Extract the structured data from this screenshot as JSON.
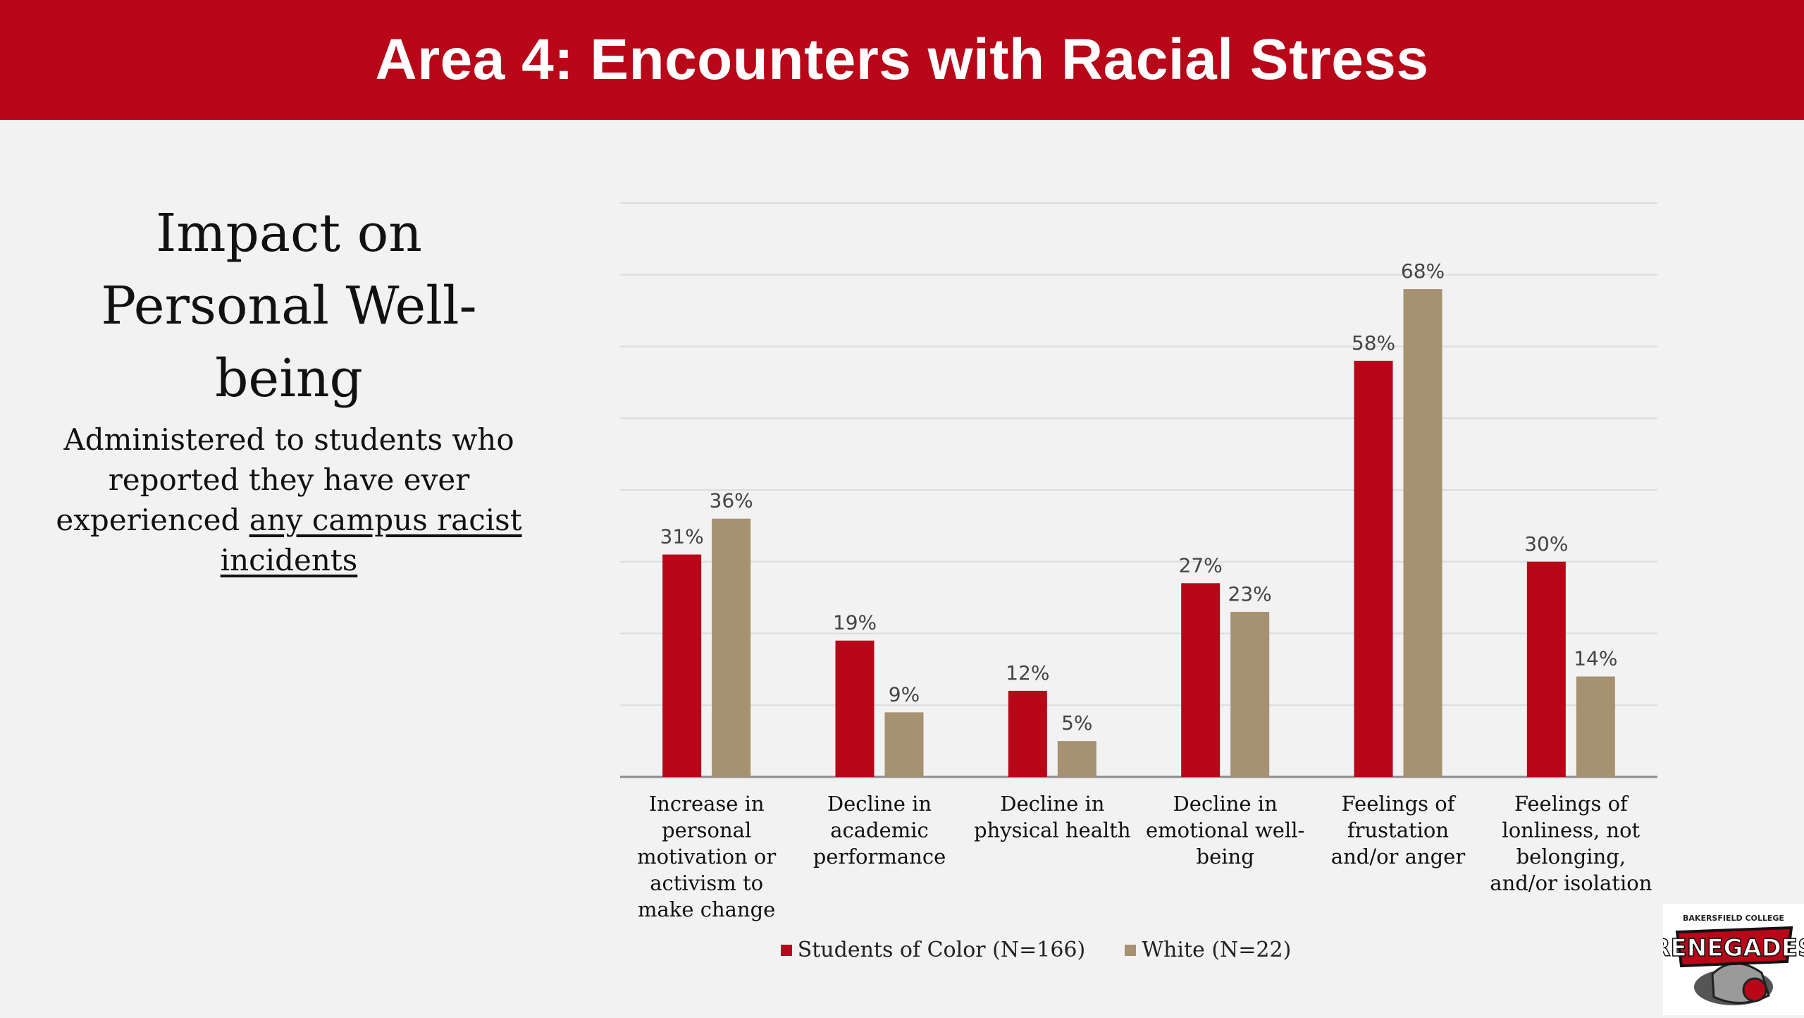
{
  "banner": {
    "title": "Area 4: Encounters with Racial Stress"
  },
  "left_panel": {
    "title": "Impact on Personal Well-being",
    "subtitle_plain": "Administered to students who reported they have ever experienced ",
    "subtitle_underlined": "any campus racist incidents"
  },
  "logo": {
    "text_top": "BAKERSFIELD COLLEGE",
    "text_main": "RENEGADES"
  },
  "colors": {
    "banner": "#b70718",
    "students_of_color": "#b70718",
    "white": "#a69170",
    "background": "#f2f2f2"
  },
  "chart_data": {
    "type": "bar",
    "categories": [
      "Increase in personal motivation or activism to make change",
      "Decline in academic performance",
      "Decline in physical health",
      "Decline in emotional well-being",
      "Feelings of frustation and/or anger",
      "Feelings of lonliness, not belonging, and/or isolation"
    ],
    "category_lines": [
      [
        "Increase in",
        "personal",
        "motivation or",
        "activism to",
        "make change"
      ],
      [
        "Decline in",
        "academic",
        "performance"
      ],
      [
        "Decline in",
        "physical health"
      ],
      [
        "Decline in",
        "emotional well-",
        "being"
      ],
      [
        "Feelings of",
        "frustation",
        "and/or anger"
      ],
      [
        "Feelings of",
        "lonliness, not",
        "belonging,",
        "and/or isolation"
      ]
    ],
    "series": [
      {
        "name": "Students of Color (N=166)",
        "values": [
          31,
          19,
          12,
          27,
          58,
          30
        ],
        "labels": [
          "31%",
          "19%",
          "12%",
          "27%",
          "58%",
          "30%"
        ]
      },
      {
        "name": "White (N=22)",
        "values": [
          36,
          9,
          5,
          23,
          68,
          14
        ],
        "labels": [
          "36%",
          "9%",
          "5%",
          "23%",
          "68%",
          "14%"
        ]
      }
    ],
    "ylim": [
      0,
      80
    ],
    "grid": true,
    "legend_position": "bottom",
    "title": "",
    "xlabel": "",
    "ylabel": ""
  }
}
